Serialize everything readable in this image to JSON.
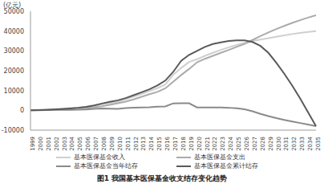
{
  "chart_data": {
    "type": "line",
    "title": "图1 我国基本医保基金收支结存变化趋势",
    "y_label": "(亿元)",
    "x": [
      1999,
      2000,
      2001,
      2002,
      2003,
      2004,
      2005,
      2006,
      2007,
      2008,
      2009,
      2010,
      2011,
      2012,
      2013,
      2014,
      2015,
      2016,
      2017,
      2018,
      2019,
      2020,
      2021,
      2022,
      2023,
      2024,
      2025,
      2026,
      2027,
      2028,
      2029,
      2030,
      2031,
      2032,
      2033,
      2034,
      2035
    ],
    "ylim": [
      -10000,
      50000
    ],
    "yticks": [
      -10000,
      0,
      10000,
      20000,
      30000,
      40000,
      50000
    ],
    "grid": false,
    "legend": "bottom",
    "series": [
      {
        "name": "基本医保基金收入",
        "color": "#cfcfcf",
        "values": [
          100,
          170,
          380,
          600,
          890,
          1140,
          1400,
          1750,
          2260,
          3040,
          3670,
          4310,
          5540,
          6940,
          8250,
          9690,
          11190,
          13080,
          17930,
          21380,
          24420,
          25750,
          27500,
          29000,
          30500,
          31800,
          33000,
          34000,
          35000,
          35700,
          36400,
          37100,
          37800,
          38500,
          39100,
          39600,
          40000
        ]
      },
      {
        "name": "基本医保基金支出",
        "color": "#ababab",
        "values": [
          70,
          120,
          240,
          410,
          650,
          860,
          1080,
          1280,
          1560,
          2080,
          2800,
          3540,
          4430,
          5540,
          6800,
          8130,
          9310,
          11080,
          14420,
          17820,
          20850,
          24250,
          26000,
          27500,
          29000,
          30500,
          32000,
          33500,
          35500,
          37500,
          39300,
          41000,
          42600,
          44100,
          45500,
          46800,
          48000
        ]
      },
      {
        "name": "基本医保基金当年结存",
        "color": "#8a8a8a",
        "values": [
          30,
          50,
          140,
          190,
          240,
          280,
          320,
          470,
          700,
          960,
          870,
          770,
          1110,
          1400,
          1450,
          1560,
          1880,
          2000,
          3510,
          3560,
          3570,
          1500,
          1500,
          1500,
          1500,
          1300,
          1000,
          500,
          -500,
          -1800,
          -2900,
          -3900,
          -4800,
          -5600,
          -6400,
          -7200,
          -8000
        ]
      },
      {
        "name": "基本医保基金累计结存",
        "color": "#5a5a5a",
        "values": [
          50,
          110,
          250,
          450,
          690,
          980,
          1300,
          1770,
          2470,
          3430,
          4280,
          5050,
          6180,
          7640,
          9120,
          10640,
          12540,
          15000,
          19400,
          25000,
          28000,
          30000,
          32000,
          33500,
          34300,
          35000,
          35300,
          35300,
          34500,
          32500,
          29000,
          24000,
          18500,
          12500,
          6000,
          -1000,
          -8000
        ]
      }
    ]
  }
}
